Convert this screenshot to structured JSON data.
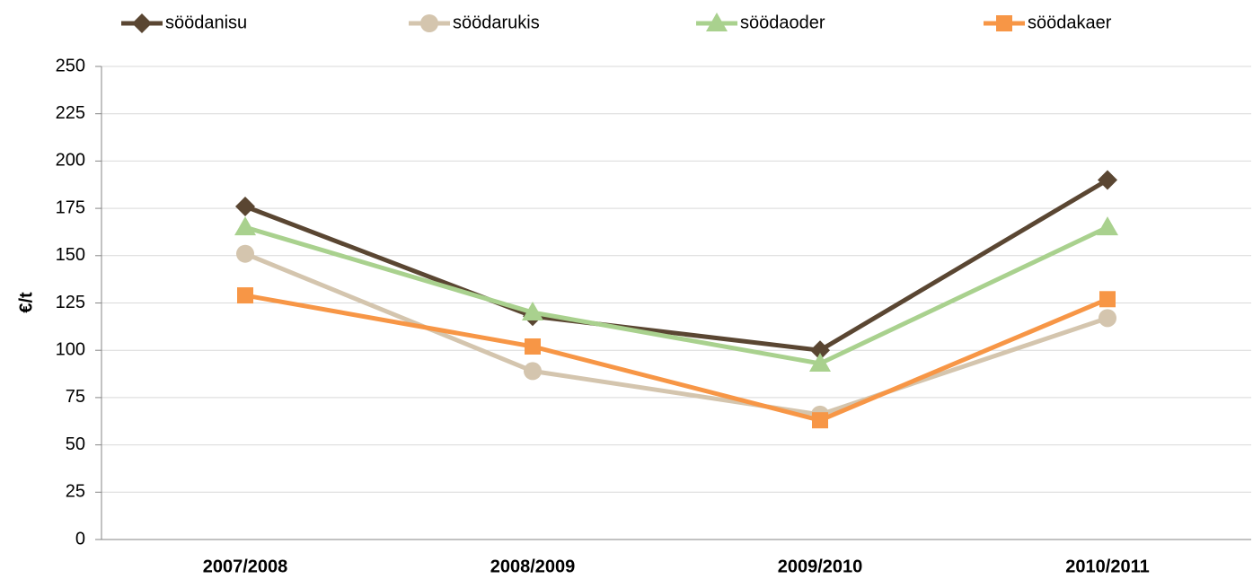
{
  "chart_data": {
    "type": "line",
    "y_label": "€/t",
    "categories": [
      "2007/2008",
      "2008/2009",
      "2009/2010",
      "2010/2011"
    ],
    "series": [
      {
        "name": "söödanisu",
        "color": "#5a4632",
        "marker": "diamond",
        "values": [
          176,
          118,
          100,
          190
        ]
      },
      {
        "name": "söödarukis",
        "color": "#d4c5ae",
        "marker": "circle",
        "values": [
          151,
          89,
          66,
          117
        ]
      },
      {
        "name": "söödaoder",
        "color": "#a9d18e",
        "marker": "triangle",
        "values": [
          165,
          120,
          93,
          165
        ]
      },
      {
        "name": "söödakaer",
        "color": "#f79646",
        "marker": "square",
        "values": [
          129,
          102,
          63,
          127
        ]
      }
    ],
    "ylim": [
      0,
      250
    ],
    "yticks": [
      0,
      25,
      50,
      75,
      100,
      125,
      150,
      175,
      200,
      225,
      250
    ],
    "grid": true
  }
}
